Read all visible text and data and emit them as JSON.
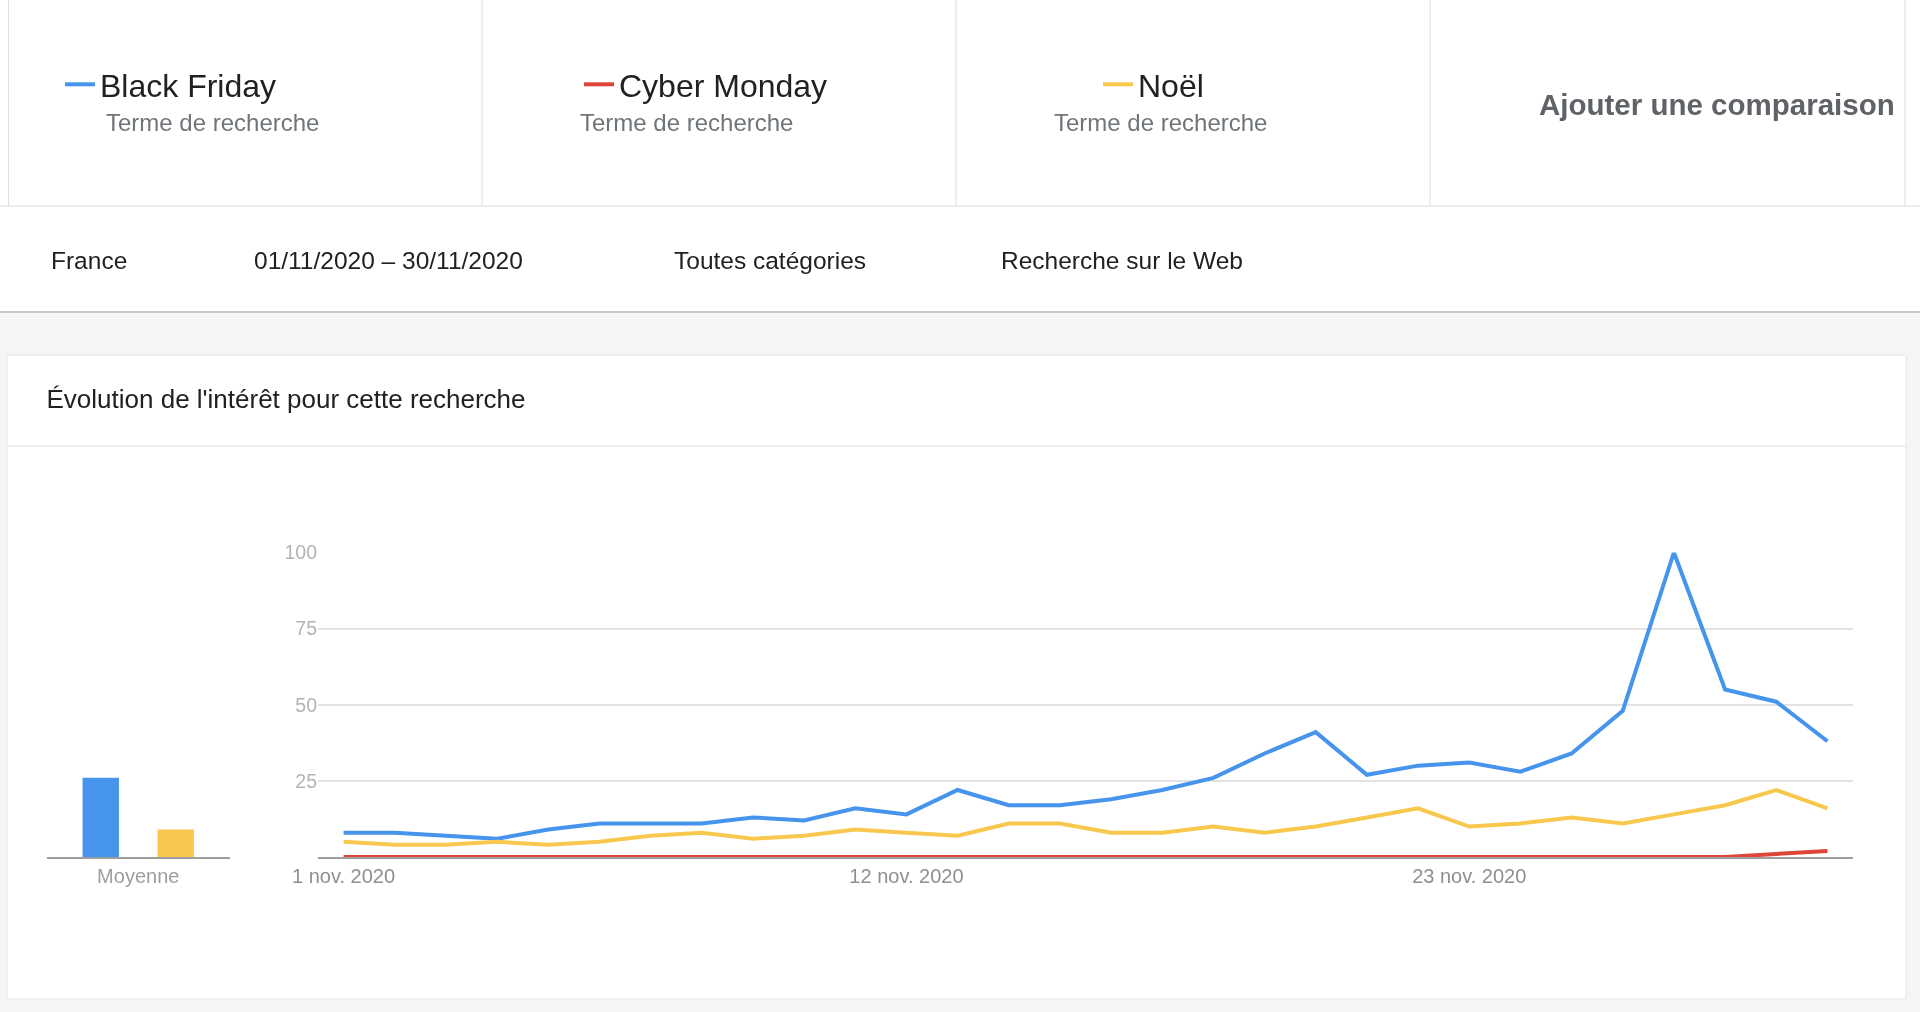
{
  "chart_data": [
    {
      "type": "line",
      "title": "Évolution de l'intérêt pour cette recherche",
      "x": [
        "2020-11-01",
        "2020-11-02",
        "2020-11-03",
        "2020-11-04",
        "2020-11-05",
        "2020-11-06",
        "2020-11-07",
        "2020-11-08",
        "2020-11-09",
        "2020-11-10",
        "2020-11-11",
        "2020-11-12",
        "2020-11-13",
        "2020-11-14",
        "2020-11-15",
        "2020-11-16",
        "2020-11-17",
        "2020-11-18",
        "2020-11-19",
        "2020-11-20",
        "2020-11-21",
        "2020-11-22",
        "2020-11-23",
        "2020-11-24",
        "2020-11-25",
        "2020-11-26",
        "2020-11-27",
        "2020-11-28",
        "2020-11-29",
        "2020-11-30"
      ],
      "xlim": [
        "2020-10-31T12:00",
        "2020-11-30T12:00"
      ],
      "xticks": [
        {
          "value": "2020-11-01",
          "label": "1 nov. 2020"
        },
        {
          "value": "2020-11-12",
          "label": "12 nov. 2020"
        },
        {
          "value": "2020-11-23",
          "label": "23 nov. 2020"
        }
      ],
      "ylim": [
        0,
        100
      ],
      "yticks": [
        25,
        50,
        75,
        100
      ],
      "grid": "y",
      "legend": "top",
      "marker": "none",
      "line_style": "solid",
      "series": [
        {
          "name": "Black Friday",
          "color": "#4694ec",
          "values": [
            8,
            8,
            7,
            6,
            9,
            11,
            11,
            11,
            13,
            12,
            16,
            14,
            22,
            17,
            17,
            19,
            22,
            26,
            34,
            41,
            27,
            30,
            31,
            28,
            34,
            48,
            100,
            55,
            51,
            38
          ]
        },
        {
          "name": "Cyber Monday",
          "color": "#e0453a",
          "values": [
            0,
            0,
            0,
            0,
            0,
            0,
            0,
            0,
            0,
            0,
            0,
            0,
            0,
            0,
            0,
            0,
            0,
            0,
            0,
            0,
            0,
            0,
            0,
            0,
            0,
            0,
            0,
            0,
            1,
            2
          ]
        },
        {
          "name": "Noël",
          "color": "#f7c84d",
          "values": [
            5,
            4,
            4,
            5,
            4,
            5,
            7,
            8,
            6,
            7,
            9,
            8,
            7,
            11,
            11,
            8,
            8,
            10,
            8,
            10,
            13,
            16,
            10,
            11,
            13,
            11,
            14,
            17,
            22,
            16
          ]
        }
      ],
      "annotations": [
        "Terme de recherche",
        "Terme de recherche",
        "Terme de recherche",
        "Ajouter une comparaison",
        "France",
        "01/11/2020 – 30/11/2020",
        "Toutes catégories",
        "Recherche sur le Web"
      ]
    },
    {
      "type": "bar",
      "categories": [
        "Moyenne"
      ],
      "ylim": [
        0,
        100
      ],
      "tick_labels": "x",
      "series": [
        {
          "color": "#4694ec",
          "values": [
            26
          ]
        },
        {
          "color": "#e0453a",
          "values": [
            0
          ]
        },
        {
          "color": "#f7c84d",
          "values": [
            9
          ]
        }
      ]
    }
  ]
}
